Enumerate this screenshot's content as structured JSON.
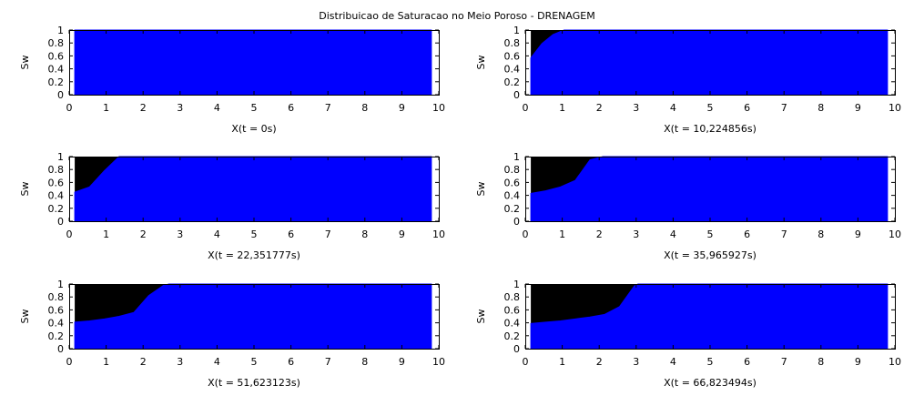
{
  "title": "Distribuicao de Saturacao no Meio Poroso - DRENAGEM",
  "colors": {
    "fluid": "#0000ff",
    "empty": "#000000",
    "background": "#ffffff"
  },
  "chart_data": [
    {
      "type": "area",
      "xlabel": "X(t = 0s)",
      "ylabel": "Sw",
      "xlim": [
        0,
        10
      ],
      "ylim": [
        0,
        1
      ],
      "xticks": [
        "0",
        "1",
        "2",
        "3",
        "4",
        "5",
        "6",
        "7",
        "8",
        "9",
        "10"
      ],
      "yticks": [
        "0",
        "0.2",
        "0.4",
        "0.6",
        "0.8",
        "1"
      ],
      "x": [
        0.15,
        9.8
      ],
      "y": [
        1,
        1
      ]
    },
    {
      "type": "area",
      "xlabel": "X(t = 10,224856s)",
      "ylabel": "Sw",
      "xlim": [
        0,
        10
      ],
      "ylim": [
        0,
        1
      ],
      "xticks": [
        "0",
        "1",
        "2",
        "3",
        "4",
        "5",
        "6",
        "7",
        "8",
        "9",
        "10"
      ],
      "yticks": [
        "0",
        "0.2",
        "0.4",
        "0.6",
        "0.8",
        "1"
      ],
      "x": [
        0.15,
        0.45,
        0.75,
        1.05,
        9.8
      ],
      "y": [
        0.57,
        0.79,
        0.93,
        1,
        1
      ]
    },
    {
      "type": "area",
      "xlabel": "X(t = 22,351777s)",
      "ylabel": "Sw",
      "xlim": [
        0,
        10
      ],
      "ylim": [
        0,
        1
      ],
      "xticks": [
        "0",
        "1",
        "2",
        "3",
        "4",
        "5",
        "6",
        "7",
        "8",
        "9",
        "10"
      ],
      "yticks": [
        "0",
        "0.2",
        "0.4",
        "0.6",
        "0.8",
        "1"
      ],
      "x": [
        0.15,
        0.55,
        0.95,
        1.35,
        9.8
      ],
      "y": [
        0.45,
        0.53,
        0.78,
        1,
        1
      ]
    },
    {
      "type": "area",
      "xlabel": "X(t = 35,965927s)",
      "ylabel": "Sw",
      "xlim": [
        0,
        10
      ],
      "ylim": [
        0,
        1
      ],
      "xticks": [
        "0",
        "1",
        "2",
        "3",
        "4",
        "5",
        "6",
        "7",
        "8",
        "9",
        "10"
      ],
      "yticks": [
        "0",
        "0.2",
        "0.4",
        "0.6",
        "0.8",
        "1"
      ],
      "x": [
        0.15,
        0.55,
        0.95,
        1.35,
        1.75,
        2.1,
        9.8
      ],
      "y": [
        0.43,
        0.47,
        0.53,
        0.63,
        0.95,
        1,
        1
      ]
    },
    {
      "type": "area",
      "xlabel": "X(t = 51,623123s)",
      "ylabel": "Sw",
      "xlim": [
        0,
        10
      ],
      "ylim": [
        0,
        1
      ],
      "xticks": [
        "0",
        "1",
        "2",
        "3",
        "4",
        "5",
        "6",
        "7",
        "8",
        "9",
        "10"
      ],
      "yticks": [
        "0",
        "0.2",
        "0.4",
        "0.6",
        "0.8",
        "1"
      ],
      "x": [
        0.15,
        0.55,
        0.95,
        1.35,
        1.75,
        2.15,
        2.55,
        2.7,
        9.8
      ],
      "y": [
        0.41,
        0.43,
        0.46,
        0.5,
        0.56,
        0.82,
        0.98,
        1,
        1
      ]
    },
    {
      "type": "area",
      "xlabel": "X(t = 66,823494s)",
      "ylabel": "Sw",
      "xlim": [
        0,
        10
      ],
      "ylim": [
        0,
        1
      ],
      "xticks": [
        "0",
        "1",
        "2",
        "3",
        "4",
        "5",
        "6",
        "7",
        "8",
        "9",
        "10"
      ],
      "yticks": [
        "0",
        "0.2",
        "0.4",
        "0.6",
        "0.8",
        "1"
      ],
      "x": [
        0.15,
        0.55,
        0.95,
        1.35,
        1.75,
        2.15,
        2.55,
        2.95,
        3.05,
        9.8
      ],
      "y": [
        0.39,
        0.41,
        0.43,
        0.46,
        0.49,
        0.53,
        0.65,
        0.97,
        1,
        1
      ]
    }
  ]
}
